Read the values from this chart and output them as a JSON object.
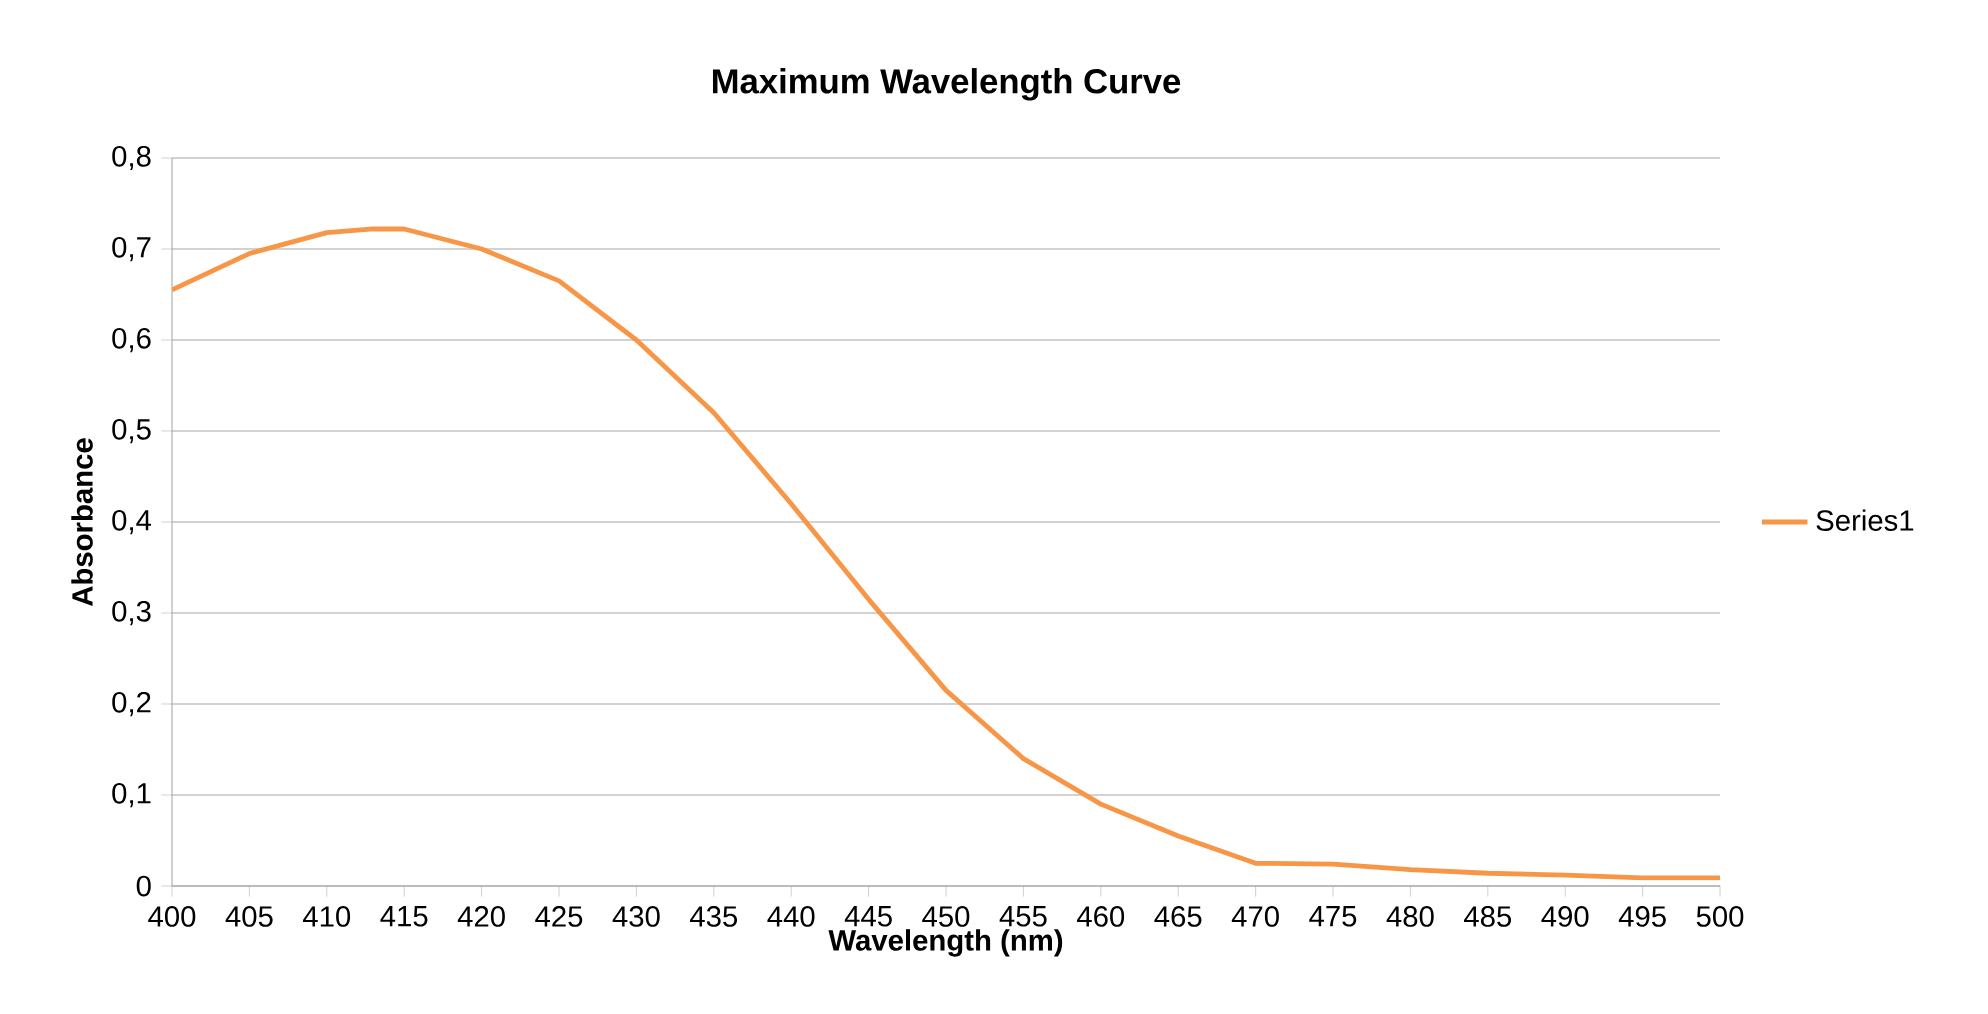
{
  "chart_data": {
    "type": "line",
    "title": "Maximum Wavelength Curve",
    "xlabel": "Wavelength (nm)",
    "ylabel": "Absorbance",
    "x": [
      400,
      405,
      410,
      413,
      415,
      420,
      425,
      430,
      435,
      440,
      445,
      450,
      455,
      460,
      465,
      470,
      475,
      480,
      485,
      490,
      495,
      500
    ],
    "series": [
      {
        "name": "Series1",
        "color": "#f79646",
        "values": [
          0.655,
          0.695,
          0.718,
          0.722,
          0.722,
          0.7,
          0.665,
          0.6,
          0.52,
          0.42,
          0.315,
          0.215,
          0.14,
          0.09,
          0.055,
          0.025,
          0.024,
          0.018,
          0.014,
          0.012,
          0.009,
          0.009
        ]
      }
    ],
    "xlim": [
      400,
      500
    ],
    "ylim": [
      0,
      0.8
    ],
    "xticks": [
      400,
      405,
      410,
      415,
      420,
      425,
      430,
      435,
      440,
      445,
      450,
      455,
      460,
      465,
      470,
      475,
      480,
      485,
      490,
      495,
      500
    ],
    "yticks": [
      0,
      {
        "value": 0.1,
        "label": "0,1"
      },
      {
        "value": 0.2,
        "label": "0,2"
      },
      {
        "value": 0.3,
        "label": "0,3"
      },
      {
        "value": 0.4,
        "label": "0,4"
      },
      {
        "value": 0.5,
        "label": "0,5"
      },
      {
        "value": 0.6,
        "label": "0,6"
      },
      {
        "value": 0.7,
        "label": "0,7"
      },
      {
        "value": 0.8,
        "label": "0,8"
      }
    ],
    "grid": "y",
    "legend": "right"
  }
}
